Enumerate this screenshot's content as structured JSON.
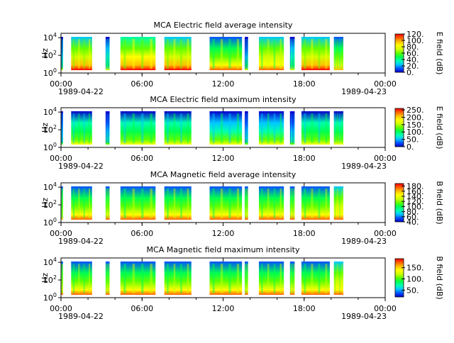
{
  "figure": {
    "x_tick_labels": [
      "00:00",
      "06:00",
      "12:00",
      "18:00",
      "00:00"
    ],
    "x_tick_hours": [
      0,
      6,
      12,
      18,
      24
    ],
    "date_start": "1989-04-22",
    "date_end": "1989-04-23",
    "x_range_hours": [
      0,
      24
    ],
    "minor_tick_step_hours": 2,
    "colormap": [
      "#0000c8",
      "#0050ff",
      "#00c8ff",
      "#00ffb0",
      "#00ff50",
      "#60ff00",
      "#d0ff00",
      "#ffff00",
      "#ffc000",
      "#ff6000",
      "#ff0000"
    ]
  },
  "chart_data": [
    {
      "type": "heatmap",
      "title": "MCA  Electric field average intensity",
      "ylabel": "Hz",
      "y_scale": "log",
      "y_ticks": [
        {
          "base": "10",
          "exp": "0"
        },
        {
          "base": "10",
          "exp": "2"
        },
        {
          "base": "10",
          "exp": "4"
        }
      ],
      "y_range_hz": [
        1,
        31000
      ],
      "colorbar_label": "E field (dB)",
      "colorbar_range": [
        0,
        120
      ],
      "colorbar_ticks": [
        "0.",
        "20.",
        "40.",
        "60.",
        "80.",
        "100.",
        "120."
      ],
      "colorbar_values": [
        0,
        20,
        40,
        60,
        80,
        100,
        120
      ],
      "segments": [
        {
          "start": 0.0,
          "end": 0.15,
          "level": 0.15
        },
        {
          "start": 0.75,
          "end": 2.3,
          "level": 0.55
        },
        {
          "start": 3.3,
          "end": 3.6,
          "level": 0.2
        },
        {
          "start": 4.4,
          "end": 7.0,
          "level": 0.6
        },
        {
          "start": 7.65,
          "end": 9.65,
          "level": 0.58
        },
        {
          "start": 11.0,
          "end": 13.4,
          "level": 0.45
        },
        {
          "start": 13.6,
          "end": 13.85,
          "level": 0.15
        },
        {
          "start": 14.65,
          "end": 16.5,
          "level": 0.5
        },
        {
          "start": 16.95,
          "end": 17.3,
          "level": 0.2
        },
        {
          "start": 17.8,
          "end": 19.9,
          "level": 0.55
        },
        {
          "start": 20.2,
          "end": 20.9,
          "level": 0.4
        }
      ]
    },
    {
      "type": "heatmap",
      "title": "MCA  Electric field maximum intensity",
      "ylabel": "Hz",
      "y_scale": "log",
      "y_ticks": [
        {
          "base": "10",
          "exp": "0"
        },
        {
          "base": "10",
          "exp": "2"
        },
        {
          "base": "10",
          "exp": "4"
        }
      ],
      "y_range_hz": [
        1,
        31000
      ],
      "colorbar_label": "E field (dB)",
      "colorbar_range": [
        0,
        260
      ],
      "colorbar_ticks": [
        "0.",
        "50.",
        "100.",
        "150.",
        "200.",
        "250."
      ],
      "colorbar_values": [
        0,
        50,
        100,
        150,
        200,
        250
      ],
      "segments": [
        {
          "start": 0.0,
          "end": 0.15,
          "level": 0.12
        },
        {
          "start": 0.75,
          "end": 2.3,
          "level": 0.3
        },
        {
          "start": 3.3,
          "end": 3.6,
          "level": 0.12
        },
        {
          "start": 4.4,
          "end": 7.0,
          "level": 0.3
        },
        {
          "start": 7.65,
          "end": 9.65,
          "level": 0.3
        },
        {
          "start": 11.0,
          "end": 13.4,
          "level": 0.25
        },
        {
          "start": 13.6,
          "end": 13.85,
          "level": 0.12
        },
        {
          "start": 14.65,
          "end": 16.5,
          "level": 0.25
        },
        {
          "start": 16.95,
          "end": 17.3,
          "level": 0.12
        },
        {
          "start": 17.8,
          "end": 19.9,
          "level": 0.3
        },
        {
          "start": 20.2,
          "end": 20.9,
          "level": 0.3
        }
      ]
    },
    {
      "type": "heatmap",
      "title": "MCA  Magnetic field average intensity",
      "ylabel": "Hz",
      "y_scale": "log",
      "y_ticks": [
        {
          "base": "10",
          "exp": "0"
        },
        {
          "base": "10",
          "exp": "2"
        },
        {
          "base": "10",
          "exp": "4"
        }
      ],
      "y_range_hz": [
        1,
        31000
      ],
      "colorbar_label": "B field (dB)",
      "colorbar_range": [
        40,
        190
      ],
      "colorbar_ticks": [
        "40.",
        "60.",
        "80.",
        "100.",
        "120.",
        "140.",
        "160.",
        "180."
      ],
      "colorbar_values": [
        40,
        60,
        80,
        100,
        120,
        140,
        160,
        180
      ],
      "segments": [
        {
          "start": 0.0,
          "end": 0.15,
          "level": 0.4
        },
        {
          "start": 0.75,
          "end": 2.3,
          "level": 0.45
        },
        {
          "start": 3.3,
          "end": 3.6,
          "level": 0.45
        },
        {
          "start": 4.4,
          "end": 7.0,
          "level": 0.45
        },
        {
          "start": 7.65,
          "end": 9.65,
          "level": 0.45
        },
        {
          "start": 11.0,
          "end": 13.4,
          "level": 0.45
        },
        {
          "start": 13.6,
          "end": 13.85,
          "level": 0.45
        },
        {
          "start": 14.65,
          "end": 16.5,
          "level": 0.45
        },
        {
          "start": 16.95,
          "end": 17.3,
          "level": 0.45
        },
        {
          "start": 17.8,
          "end": 19.9,
          "level": 0.45
        },
        {
          "start": 20.2,
          "end": 20.9,
          "level": 0.5
        }
      ]
    },
    {
      "type": "heatmap",
      "title": "MCA  Magnetic field maximum intensity",
      "ylabel": "Hz",
      "y_scale": "log",
      "y_ticks": [
        {
          "base": "10",
          "exp": "0"
        },
        {
          "base": "10",
          "exp": "2"
        },
        {
          "base": "10",
          "exp": "4"
        }
      ],
      "y_range_hz": [
        1,
        31000
      ],
      "colorbar_label": "B field (dB)",
      "colorbar_range": [
        20,
        190
      ],
      "colorbar_ticks": [
        "50.",
        "100.",
        "150."
      ],
      "colorbar_values": [
        50,
        100,
        150
      ],
      "segments": [
        {
          "start": 0.0,
          "end": 0.15,
          "level": 0.45
        },
        {
          "start": 0.75,
          "end": 2.3,
          "level": 0.45
        },
        {
          "start": 3.3,
          "end": 3.6,
          "level": 0.45
        },
        {
          "start": 4.4,
          "end": 7.0,
          "level": 0.45
        },
        {
          "start": 7.65,
          "end": 9.65,
          "level": 0.45
        },
        {
          "start": 11.0,
          "end": 13.4,
          "level": 0.45
        },
        {
          "start": 13.6,
          "end": 13.85,
          "level": 0.45
        },
        {
          "start": 14.65,
          "end": 16.5,
          "level": 0.45
        },
        {
          "start": 16.95,
          "end": 17.3,
          "level": 0.45
        },
        {
          "start": 17.8,
          "end": 19.9,
          "level": 0.45
        },
        {
          "start": 20.2,
          "end": 20.9,
          "level": 0.5
        }
      ]
    }
  ]
}
